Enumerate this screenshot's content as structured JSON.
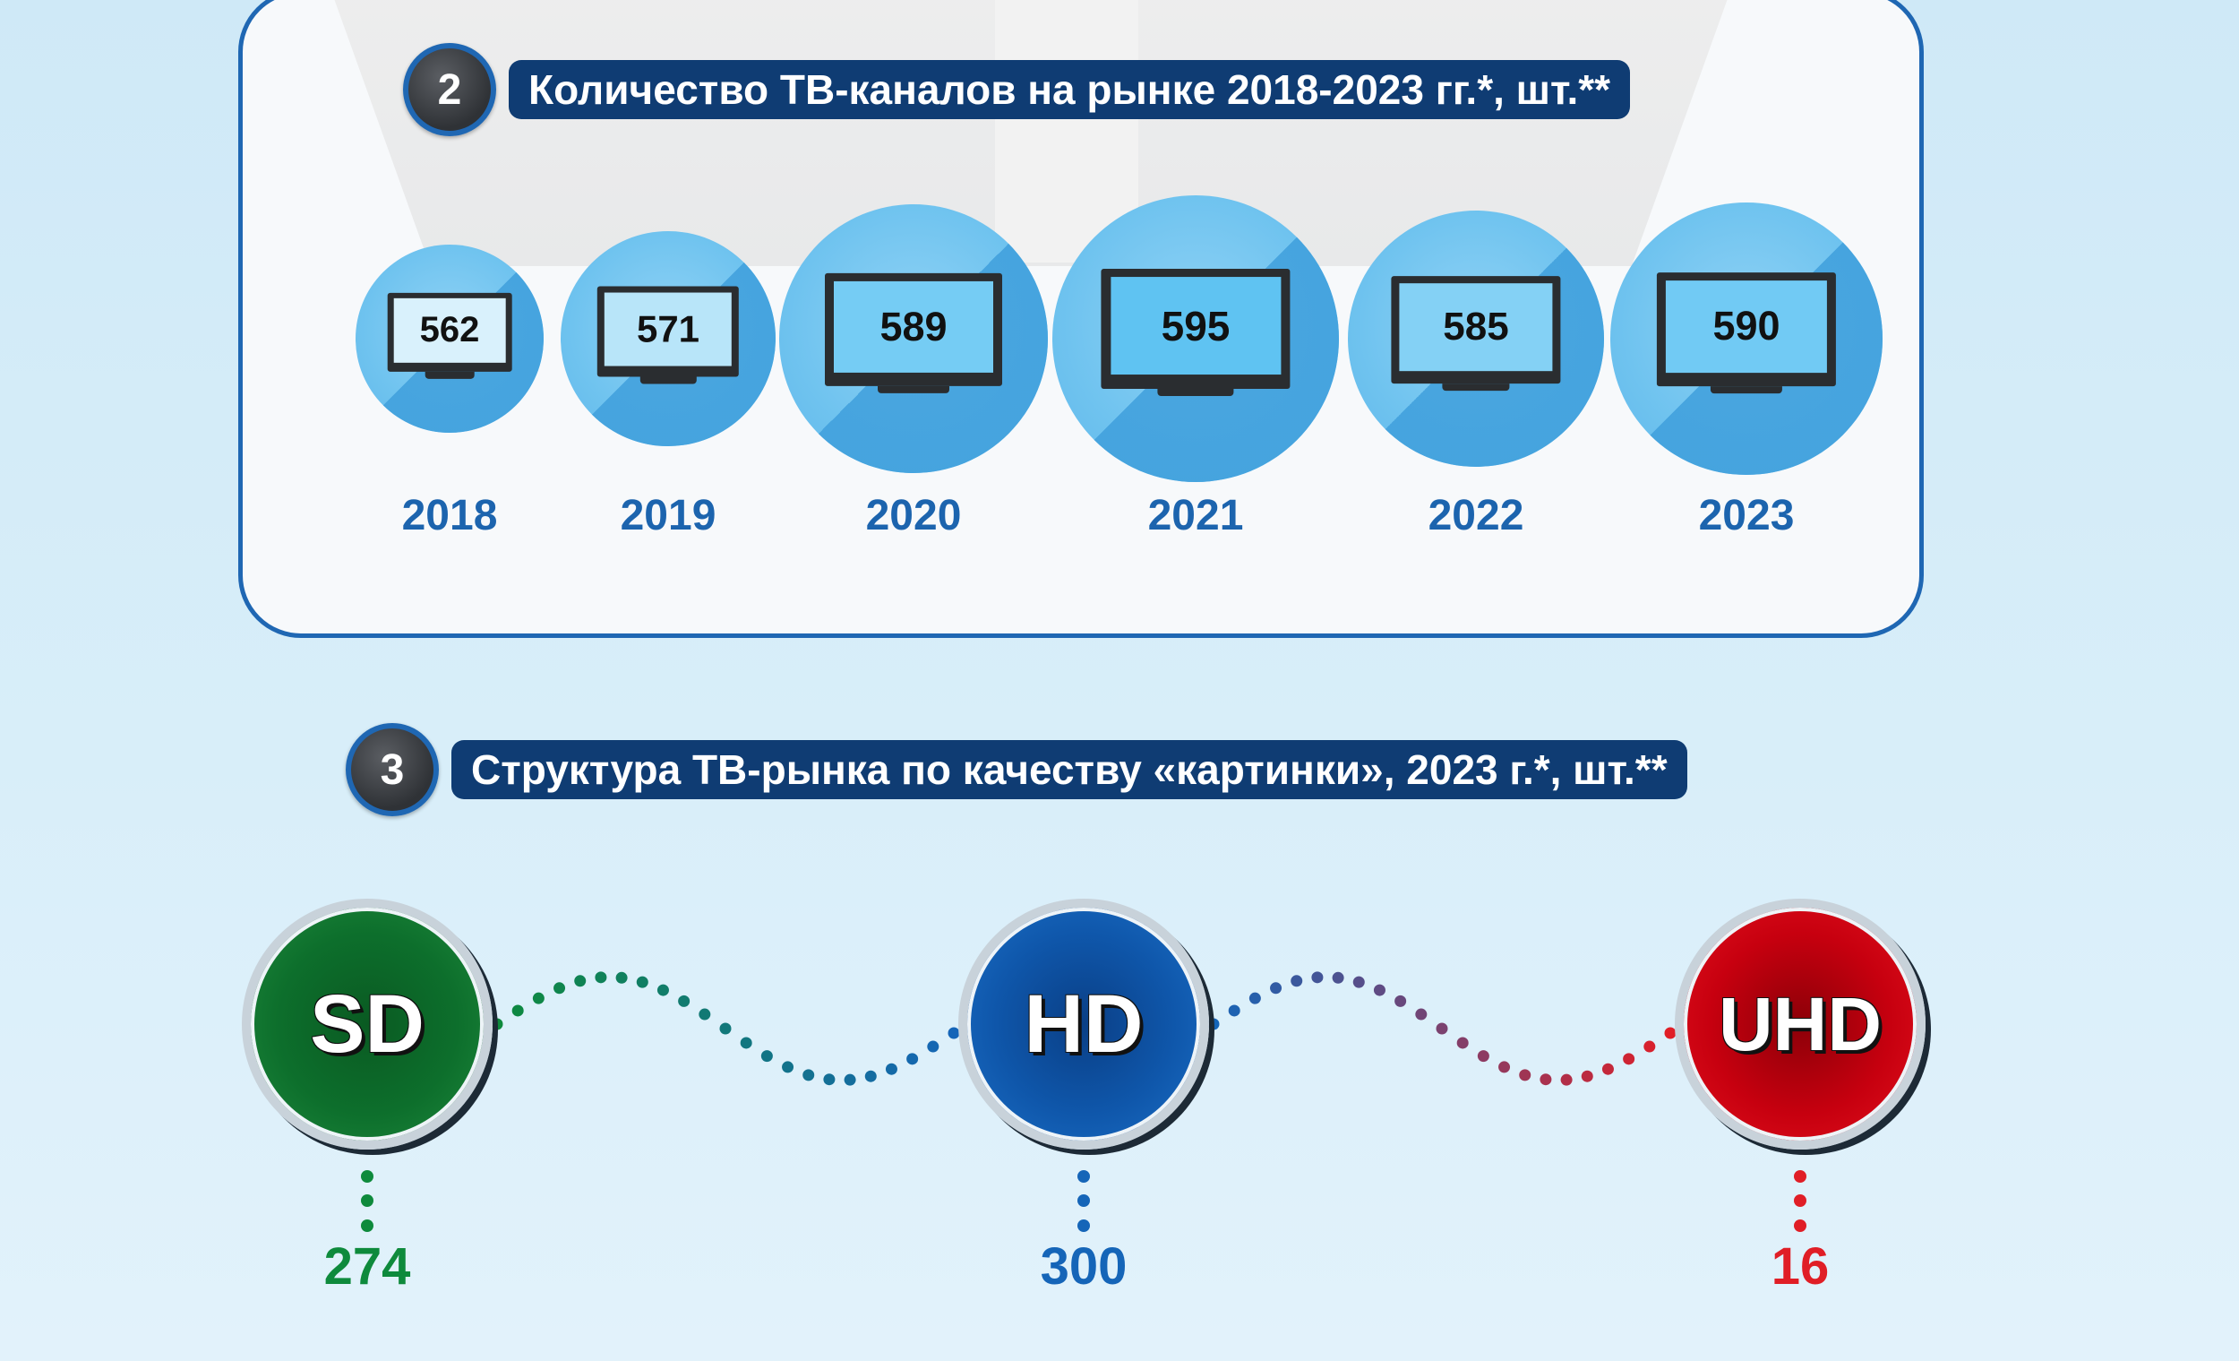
{
  "section2": {
    "badge": "2",
    "title": "Количество ТВ-каналов на рынке 2018-2023 гг.*, шт.**"
  },
  "section3": {
    "badge": "3",
    "title": "Структура ТВ-рынка по качеству «картинки», 2023 г.*, шт.**"
  },
  "chart_data": [
    {
      "type": "bar",
      "categories": [
        "2018",
        "2019",
        "2020",
        "2021",
        "2022",
        "2023"
      ],
      "values": [
        562,
        571,
        589,
        595,
        585,
        590
      ],
      "title": "Количество ТВ-каналов на рынке 2018-2023 гг.*, шт.**",
      "xlabel": "",
      "ylabel": ""
    },
    {
      "type": "bar",
      "categories": [
        "SD",
        "HD",
        "UHD"
      ],
      "values": [
        274,
        300,
        16
      ],
      "title": "Структура ТВ-рынка по качеству «картинки», 2023 г.*, шт.**",
      "colors": [
        "#0e8a3c",
        "#1565b8",
        "#e01e26"
      ]
    }
  ],
  "colors": {
    "accent": "#1f67b3",
    "title_bar": "#0f3c73",
    "year_text": "#1c64ae",
    "sd": "#0e8a3c",
    "hd": "#1565b8",
    "uhd": "#e01e26"
  }
}
